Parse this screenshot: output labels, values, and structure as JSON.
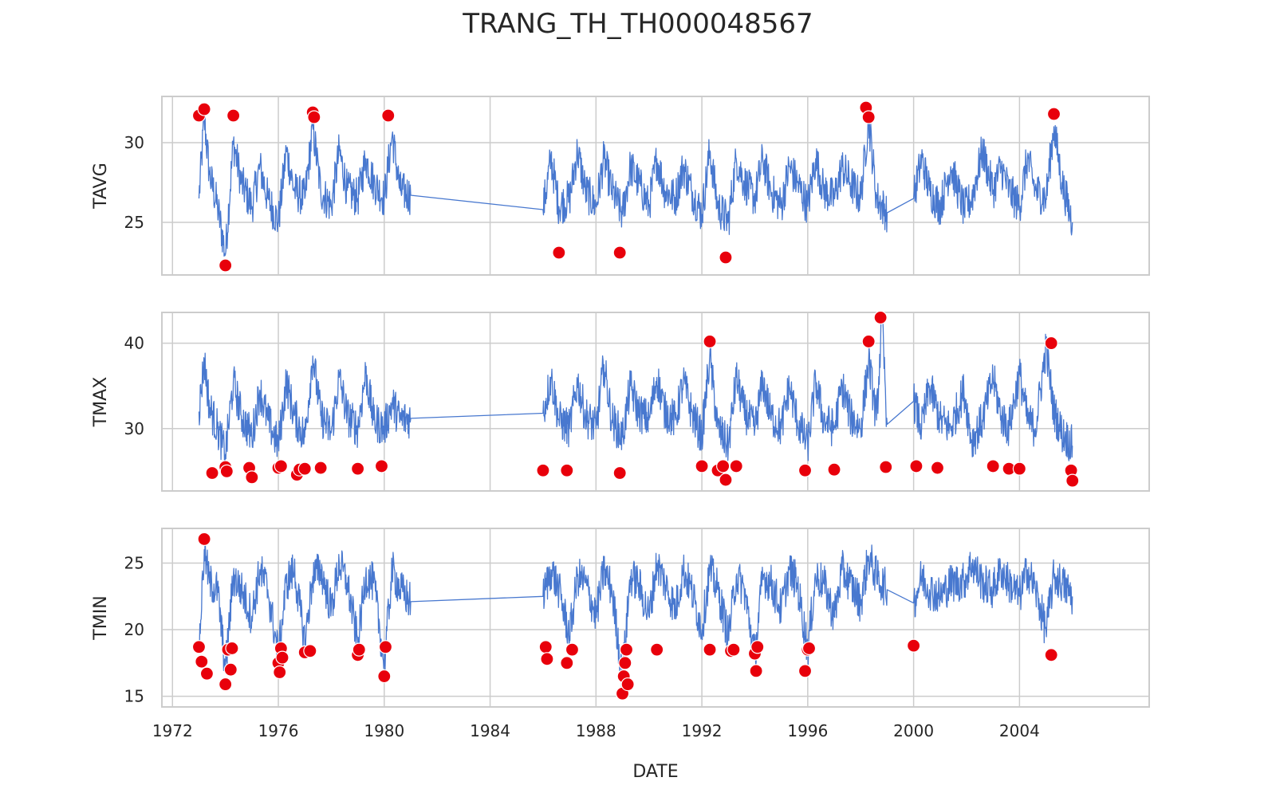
{
  "title": "TRANG_TH_TH000048567",
  "colors": {
    "line": "#4878cf",
    "outlier": "#e8000b",
    "grid": "#cccccc",
    "frame": "#cccccc",
    "text": "#262626"
  },
  "chart_data": {
    "type": "line",
    "title": "TRANG_TH_TH000048567",
    "xlabel": "DATE",
    "x_range": [
      1971.6,
      2008.9
    ],
    "x_ticks": [
      "1972",
      "1976",
      "1980",
      "1984",
      "1988",
      "1992",
      "1996",
      "2000",
      "2004"
    ],
    "grid": true,
    "panels": [
      {
        "ylabel": "TAVG",
        "ylim": [
          21.7,
          32.9
        ],
        "y_ticks": [
          25,
          30
        ],
        "series": {
          "x": [
            1973.0,
            1973.2,
            1973.4,
            1973.7,
            1974.0,
            1974.3,
            1974.6,
            1975.0,
            1975.3,
            1975.6,
            1976.0,
            1976.3,
            1976.6,
            1977.0,
            1977.3,
            1977.6,
            1978.0,
            1978.3,
            1978.6,
            1979.0,
            1979.3,
            1979.6,
            1980.0,
            1980.3,
            1980.6,
            1981.0,
            1986.0,
            1986.3,
            1986.6,
            1987.0,
            1987.3,
            1987.6,
            1988.0,
            1988.3,
            1988.6,
            1989.0,
            1989.3,
            1989.6,
            1990.0,
            1990.3,
            1990.6,
            1991.0,
            1991.3,
            1991.6,
            1992.0,
            1992.3,
            1992.6,
            1993.0,
            1993.3,
            1993.6,
            1994.0,
            1994.3,
            1994.6,
            1995.0,
            1995.3,
            1995.6,
            1996.0,
            1996.3,
            1996.6,
            1997.0,
            1997.3,
            1997.6,
            1998.0,
            1998.3,
            1998.6,
            1999.0,
            2000.0,
            2000.3,
            2000.6,
            2001.0,
            2001.4,
            2001.9,
            2002.2,
            2002.6,
            2003.0,
            2003.3,
            2003.6,
            2004.0,
            2004.3,
            2004.6,
            2005.0,
            2005.3,
            2005.6,
            2006.0
          ],
          "y": [
            26.5,
            31.5,
            28.0,
            26.0,
            23.0,
            30.0,
            27.5,
            26.0,
            28.5,
            26.5,
            25.0,
            29.5,
            27.0,
            26.5,
            31.0,
            27.0,
            26.0,
            29.5,
            27.0,
            26.5,
            29.0,
            27.5,
            26.5,
            30.5,
            27.0,
            26.7,
            25.8,
            29.0,
            26.0,
            26.5,
            29.5,
            27.0,
            26.0,
            29.0,
            27.0,
            25.5,
            28.5,
            27.5,
            26.0,
            29.0,
            27.0,
            26.5,
            28.5,
            27.0,
            25.5,
            29.5,
            26.0,
            25.0,
            29.0,
            27.5,
            26.5,
            29.0,
            27.0,
            26.0,
            28.5,
            27.5,
            26.0,
            29.0,
            27.0,
            26.5,
            28.5,
            27.5,
            26.5,
            31.5,
            26.5,
            25.6,
            26.5,
            29.0,
            27.0,
            26.0,
            28.5,
            25.8,
            26.5,
            29.5,
            27.0,
            28.5,
            27.0,
            26.0,
            29.0,
            27.0,
            26.5,
            31.0,
            27.5,
            25.0
          ]
        },
        "outliers": {
          "x": [
            1973.0,
            1973.2,
            1974.0,
            1974.3,
            1977.3,
            1977.35,
            1980.15,
            1986.6,
            1988.9,
            1992.9,
            1998.2,
            1998.3,
            2005.3
          ],
          "y": [
            31.7,
            32.1,
            22.3,
            31.7,
            31.9,
            31.6,
            31.7,
            23.1,
            23.1,
            22.8,
            32.2,
            31.6,
            31.8
          ]
        }
      },
      {
        "ylabel": "TMAX",
        "ylim": [
          22.7,
          43.6
        ],
        "y_ticks": [
          30,
          40
        ],
        "series": {
          "x": [
            1973.0,
            1973.2,
            1973.4,
            1973.7,
            1974.0,
            1974.3,
            1974.6,
            1975.0,
            1975.3,
            1975.6,
            1976.0,
            1976.3,
            1976.6,
            1977.0,
            1977.3,
            1977.6,
            1978.0,
            1978.3,
            1978.6,
            1979.0,
            1979.3,
            1979.6,
            1980.0,
            1980.3,
            1980.6,
            1981.0,
            1986.0,
            1986.3,
            1986.6,
            1987.0,
            1987.3,
            1987.6,
            1988.0,
            1988.3,
            1988.6,
            1989.0,
            1989.3,
            1989.6,
            1990.0,
            1990.3,
            1990.6,
            1991.0,
            1991.3,
            1991.6,
            1992.0,
            1992.3,
            1992.6,
            1993.0,
            1993.3,
            1993.6,
            1994.0,
            1994.3,
            1994.6,
            1995.0,
            1995.3,
            1995.6,
            1996.0,
            1996.3,
            1996.6,
            1997.0,
            1997.3,
            1997.6,
            1998.0,
            1998.3,
            1998.6,
            1998.8,
            1999.0,
            2000.0,
            2000.3,
            2000.6,
            2001.0,
            2001.4,
            2001.9,
            2002.2,
            2002.6,
            2003.0,
            2003.3,
            2003.6,
            2004.0,
            2004.3,
            2004.6,
            2005.0,
            2005.3,
            2005.6,
            2006.0
          ],
          "y": [
            32.0,
            38.0,
            32.5,
            30.0,
            27.0,
            35.5,
            31.5,
            29.0,
            34.5,
            31.0,
            28.0,
            35.5,
            31.5,
            29.0,
            38.5,
            31.5,
            29.5,
            36.0,
            31.5,
            30.0,
            36.5,
            31.0,
            30.0,
            33.0,
            31.0,
            31.2,
            31.8,
            36.0,
            31.0,
            30.0,
            35.5,
            31.5,
            30.0,
            37.5,
            31.0,
            29.0,
            35.0,
            32.0,
            31.0,
            36.0,
            32.0,
            31.0,
            35.5,
            32.0,
            29.0,
            38.5,
            30.0,
            28.0,
            36.0,
            32.0,
            30.0,
            35.5,
            31.5,
            30.0,
            35.0,
            31.0,
            28.0,
            35.5,
            31.0,
            30.0,
            35.0,
            31.5,
            30.0,
            38.0,
            31.0,
            42.8,
            30.5,
            33.2,
            30.0,
            35.0,
            31.0,
            30.0,
            34.5,
            28.5,
            31.0,
            36.0,
            31.5,
            30.0,
            36.5,
            31.0,
            30.0,
            39.5,
            32.0,
            29.5,
            28.0
          ]
        },
        "outliers": {
          "x": [
            1973.5,
            1974.0,
            1974.05,
            1974.9,
            1975.0,
            1976.0,
            1976.1,
            1976.7,
            1976.8,
            1977.0,
            1977.6,
            1979.0,
            1979.9,
            1986.0,
            1986.9,
            1988.9,
            1992.0,
            1992.3,
            1992.6,
            1992.8,
            1992.9,
            1993.3,
            1995.9,
            1997.0,
            1998.3,
            1998.75,
            1998.95,
            2000.1,
            2000.9,
            2003.0,
            2003.6,
            2004.0,
            2005.2,
            2005.95,
            2006.0
          ],
          "y": [
            24.8,
            25.5,
            25.0,
            25.4,
            24.3,
            25.4,
            25.6,
            24.6,
            25.2,
            25.3,
            25.4,
            25.3,
            25.6,
            25.1,
            25.1,
            24.8,
            25.6,
            40.2,
            25.1,
            25.6,
            24.0,
            25.6,
            25.1,
            25.2,
            40.2,
            43.0,
            25.5,
            25.6,
            25.4,
            25.6,
            25.3,
            25.3,
            40.0,
            25.1,
            23.9
          ]
        }
      },
      {
        "ylabel": "TMIN",
        "ylim": [
          14.2,
          27.6
        ],
        "y_ticks": [
          15,
          20,
          25
        ],
        "series": {
          "x": [
            1973.0,
            1973.2,
            1973.4,
            1973.7,
            1974.0,
            1974.3,
            1974.6,
            1975.0,
            1975.3,
            1975.6,
            1976.0,
            1976.3,
            1976.6,
            1977.0,
            1977.3,
            1977.6,
            1978.0,
            1978.3,
            1978.6,
            1979.0,
            1979.3,
            1979.6,
            1980.0,
            1980.3,
            1980.6,
            1981.0,
            1986.0,
            1986.3,
            1986.6,
            1987.0,
            1987.3,
            1987.6,
            1988.0,
            1988.3,
            1988.6,
            1989.0,
            1989.3,
            1989.6,
            1990.0,
            1990.3,
            1990.6,
            1991.0,
            1991.3,
            1991.6,
            1992.0,
            1992.3,
            1992.6,
            1993.0,
            1993.3,
            1993.6,
            1994.0,
            1994.3,
            1994.6,
            1995.0,
            1995.3,
            1995.6,
            1996.0,
            1996.3,
            1996.6,
            1997.0,
            1997.3,
            1997.6,
            1998.0,
            1998.3,
            1998.6,
            1999.0,
            2000.0,
            2000.3,
            2000.6,
            2001.0,
            2001.4,
            2001.9,
            2002.2,
            2002.6,
            2003.0,
            2003.3,
            2003.6,
            2004.0,
            2004.3,
            2004.6,
            2005.0,
            2005.3,
            2005.6,
            2006.0
          ],
          "y": [
            18.5,
            26.0,
            23.5,
            23.0,
            17.0,
            24.0,
            23.0,
            21.0,
            24.5,
            23.0,
            18.0,
            23.5,
            24.5,
            19.0,
            24.0,
            24.5,
            21.5,
            25.0,
            23.5,
            19.0,
            24.0,
            23.5,
            17.5,
            24.5,
            23.0,
            22.1,
            22.5,
            24.5,
            23.0,
            19.5,
            24.0,
            23.5,
            21.0,
            24.5,
            23.0,
            16.5,
            24.0,
            23.5,
            21.0,
            25.0,
            23.5,
            21.5,
            24.5,
            23.0,
            20.0,
            24.5,
            23.0,
            19.5,
            24.0,
            23.0,
            18.0,
            24.0,
            23.5,
            21.5,
            24.5,
            23.5,
            18.5,
            24.0,
            23.5,
            21.0,
            24.5,
            23.5,
            22.0,
            25.5,
            24.0,
            23.0,
            22.0,
            24.0,
            23.0,
            22.5,
            23.5,
            23.6,
            25.0,
            23.5,
            23.0,
            24.5,
            23.5,
            22.5,
            24.5,
            23.0,
            20.0,
            24.0,
            23.5,
            22.5
          ]
        },
        "outliers": {
          "x": [
            1973.0,
            1973.1,
            1973.2,
            1973.3,
            1974.0,
            1974.1,
            1974.2,
            1974.25,
            1976.0,
            1976.05,
            1976.1,
            1976.15,
            1977.0,
            1977.2,
            1979.0,
            1979.05,
            1980.0,
            1980.05,
            1986.1,
            1986.15,
            1986.9,
            1987.1,
            1989.0,
            1989.05,
            1989.1,
            1989.15,
            1989.2,
            1990.3,
            1992.3,
            1993.1,
            1993.2,
            1994.0,
            1994.05,
            1994.1,
            1995.9,
            1996.0,
            1996.05,
            2000.0,
            2005.2
          ],
          "y": [
            18.7,
            17.6,
            26.8,
            16.7,
            15.9,
            18.5,
            17.0,
            18.6,
            17.5,
            16.8,
            18.6,
            17.9,
            18.3,
            18.4,
            18.1,
            18.5,
            16.5,
            18.7,
            18.7,
            17.8,
            17.5,
            18.5,
            15.2,
            16.5,
            17.5,
            18.5,
            15.9,
            18.5,
            18.5,
            18.4,
            18.5,
            18.2,
            16.9,
            18.7,
            16.9,
            18.5,
            18.6,
            18.8,
            18.1
          ]
        }
      }
    ]
  }
}
